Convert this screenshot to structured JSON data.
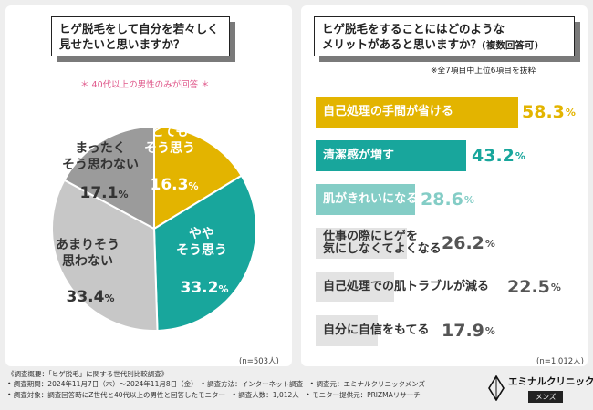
{
  "left": {
    "question": "ヒゲ脱毛をして自分を若々しく\n見せたいと思いますか？",
    "note": "＊ 40代以上の男性のみが回答 ＊",
    "n": "(n=503人)"
  },
  "right": {
    "question_main": "ヒゲ脱毛をすることにはどのような\nメリットがあると思いますか？",
    "question_sub": "(複数回答可)",
    "note": "※全7項目中上位6項目を抜粋",
    "n": "(n=1,012人)"
  },
  "footer": {
    "line1": "《調査概要：「ヒゲ脱毛」に関する世代別比較調査》",
    "line2": "• 調査期間：2024年11月7日（木）〜2024年11月8日（金）　• 調査方法：インターネット調査　• 調査元：エミナルクリニックメンズ",
    "line3": "• 調査対象：調査回答時にZ世代と40代以上の男性と回答したモニター　• 調査人数：1,012人　• モニター提供元：PRIZMAリサーチ"
  },
  "logo": {
    "name": "エミナルクリニック",
    "sub": "メンズ"
  },
  "chart_data": [
    {
      "type": "pie",
      "title": "ヒゲ脱毛をして自分を若々しく見せたいと思いますか？",
      "unit": "%",
      "slices": [
        {
          "label": "とても\nそう思う",
          "value": 16.3,
          "pct_main": "16.3",
          "color": "#e3b400",
          "text_color": "#ffffff"
        },
        {
          "label": "やや\nそう思う",
          "value": 33.2,
          "pct_main": "33.2",
          "color": "#18a69c",
          "text_color": "#ffffff"
        },
        {
          "label": "あまりそう\n思わない",
          "value": 33.4,
          "pct_main": "33.4",
          "color": "#c7c7c7",
          "text_color": "#333333"
        },
        {
          "label": "まったく\nそう思わない",
          "value": 17.1,
          "pct_main": "17.1",
          "color": "#9b9b9b",
          "text_color": "#333333"
        }
      ]
    },
    {
      "type": "bar",
      "title": "ヒゲ脱毛をすることにはどのようなメリットがあると思いますか？(複数回答可)",
      "unit": "%",
      "categories": [
        "自己処理の手間が省ける",
        "清潔感が増す",
        "肌がきれいになる",
        "仕事の際にヒゲを\n気にしなくてよくなる",
        "自己処理での肌トラブルが減る",
        "自分に自信をもてる"
      ],
      "values": [
        58.3,
        43.2,
        28.6,
        26.2,
        22.5,
        17.9
      ],
      "colors": [
        "#e3b400",
        "#18a69c",
        "#84cdc6",
        "#e3e3e3",
        "#e3e3e3",
        "#e3e3e3"
      ],
      "label_colors": [
        "#ffffff",
        "#ffffff",
        "#ffffff",
        "#333333",
        "#333333",
        "#333333"
      ],
      "pct_colors": [
        "#e3b400",
        "#18a69c",
        "#84cdc6",
        "#555555",
        "#555555",
        "#555555"
      ],
      "xlim": [
        0,
        58.3
      ]
    }
  ]
}
